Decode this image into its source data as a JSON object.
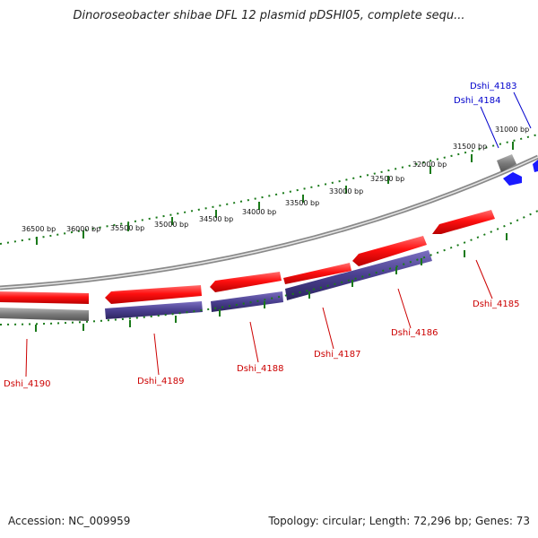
{
  "title": "Dinoroseobacter shibae DFL 12 plasmid pDSHI05, complete sequ...",
  "footer": {
    "accession": "Accession: NC_009959",
    "summary": "Topology: circular; Length: 72,296 bp; Genes: 73"
  },
  "colors": {
    "forward_gene": "#ff1010",
    "reverse_gene": "#4a3f8f",
    "forward_label": "#cc0000",
    "blue_gene": "#1a1aff",
    "blue_label": "#0000cc",
    "backbone": "#8a8a8a",
    "tick": "#1a7a1a"
  },
  "ticks": [
    {
      "label": "31000 bp",
      "bp": 31000
    },
    {
      "label": "31500 bp",
      "bp": 31500
    },
    {
      "label": "32000 bp",
      "bp": 32000
    },
    {
      "label": "32500 bp",
      "bp": 32500
    },
    {
      "label": "33000 bp",
      "bp": 33000
    },
    {
      "label": "33500 bp",
      "bp": 33500
    },
    {
      "label": "34000 bp",
      "bp": 34000
    },
    {
      "label": "34500 bp",
      "bp": 34500
    },
    {
      "label": "35000 bp",
      "bp": 35000
    },
    {
      "label": "35500 bp",
      "bp": 35500
    },
    {
      "label": "36000 bp",
      "bp": 36000
    },
    {
      "label": "36500 bp",
      "bp": 36500
    }
  ],
  "genes": [
    {
      "name": "Dshi_4183",
      "color": "blue"
    },
    {
      "name": "Dshi_4184",
      "color": "gray"
    },
    {
      "name": "Dshi_4185",
      "color": "red"
    },
    {
      "name": "Dshi_4186",
      "color": "red"
    },
    {
      "name": "Dshi_4187",
      "color": "red"
    },
    {
      "name": "Dshi_4188",
      "color": "red"
    },
    {
      "name": "Dshi_4189",
      "color": "red"
    },
    {
      "name": "Dshi_4190",
      "color": "red"
    }
  ]
}
